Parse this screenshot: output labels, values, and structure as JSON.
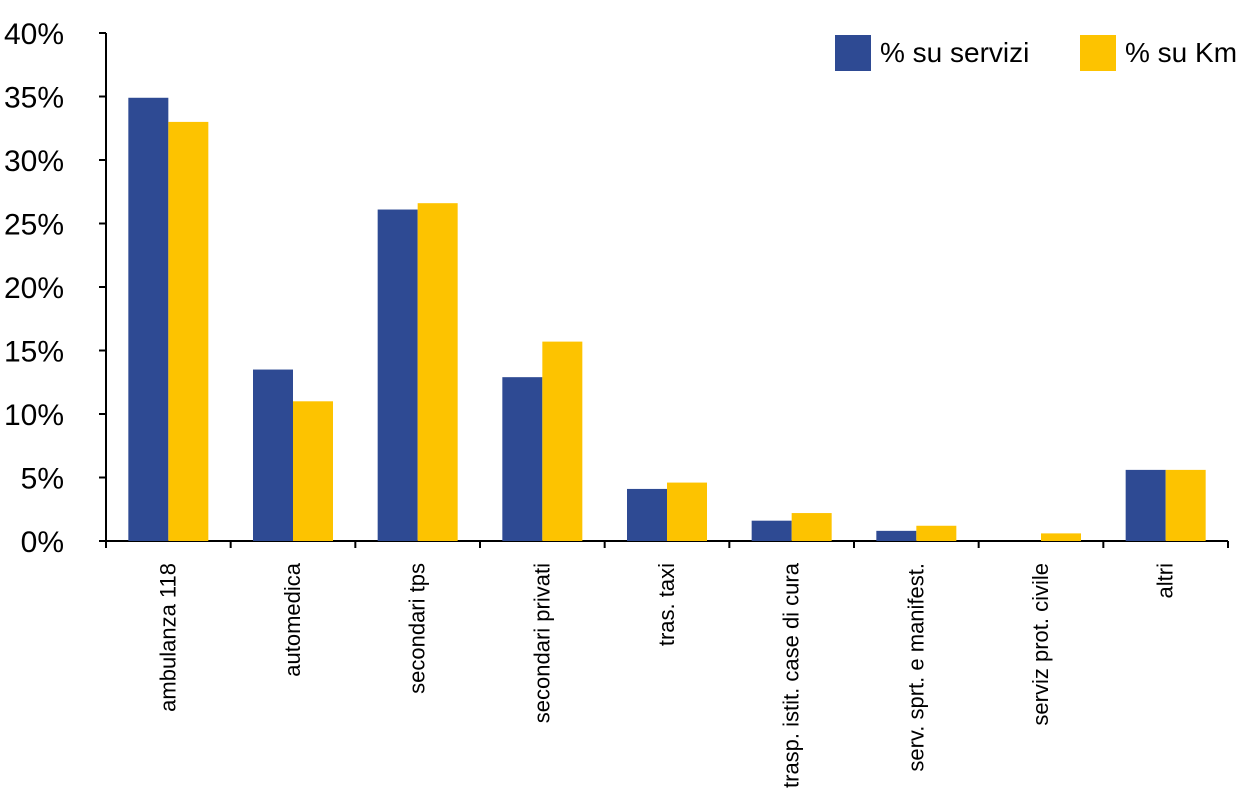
{
  "chart_data": {
    "type": "bar",
    "categories": [
      "ambulanza 118",
      "automedica",
      "secondari tps",
      "secondari privati",
      "tras. taxi",
      "trasp. istit. case di cura",
      "serv. sprt. e manifest.",
      "serviz prot. civile",
      "altri"
    ],
    "series": [
      {
        "name": "% su servizi",
        "color": "#2e4a93",
        "values": [
          34.9,
          13.5,
          26.1,
          12.9,
          4.1,
          1.6,
          0.8,
          0.0,
          5.6
        ]
      },
      {
        "name": "% su Km",
        "color": "#fdc300",
        "values": [
          33.0,
          11.0,
          26.6,
          15.7,
          4.6,
          2.2,
          1.2,
          0.6,
          5.6
        ]
      }
    ],
    "ylim": [
      0,
      40
    ],
    "yticks": [
      "0%",
      "5%",
      "10%",
      "15%",
      "20%",
      "25%",
      "30%",
      "35%",
      "40%"
    ],
    "grid": false,
    "legend_position": "top-right"
  }
}
